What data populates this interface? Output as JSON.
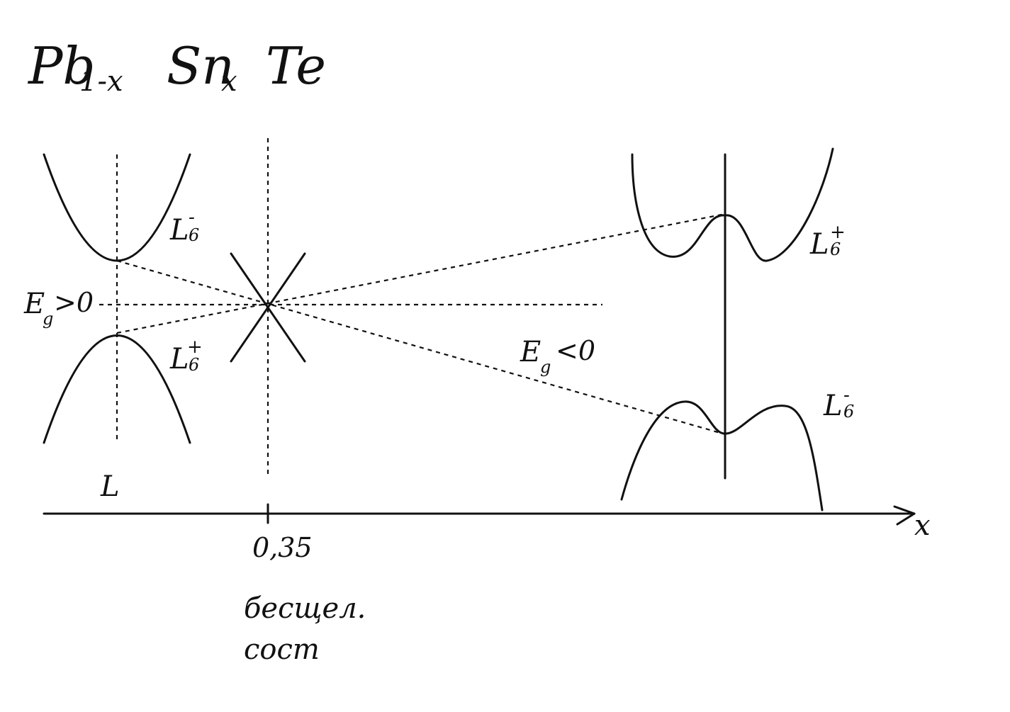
{
  "title": {
    "pb": "Pb",
    "pb_sub": "1-x",
    "sn": "Sn",
    "sn_sub": "x",
    "te": "Te"
  },
  "left_panel": {
    "upper_band": {
      "letter": "L",
      "sub": "6",
      "sup": "-"
    },
    "lower_band": {
      "letter": "L",
      "sub": "6",
      "sup": "+"
    },
    "gap_label": {
      "e": "E",
      "sub": "g",
      "rest": ">0"
    },
    "point_label": "L"
  },
  "middle": {
    "tick_value": "0,35",
    "caption_line1": "бесщел.",
    "caption_line2": "сост"
  },
  "right_panel": {
    "upper_band": {
      "letter": "L",
      "sub": "6",
      "sup": "+"
    },
    "lower_band": {
      "letter": "L",
      "sub": "6",
      "sup": "-"
    },
    "gap_label": {
      "e": "E",
      "sub": "g",
      "rest": "<0"
    }
  },
  "axis": {
    "label": "x"
  },
  "colors": {
    "ink": "#111111",
    "background": "#ffffff"
  }
}
